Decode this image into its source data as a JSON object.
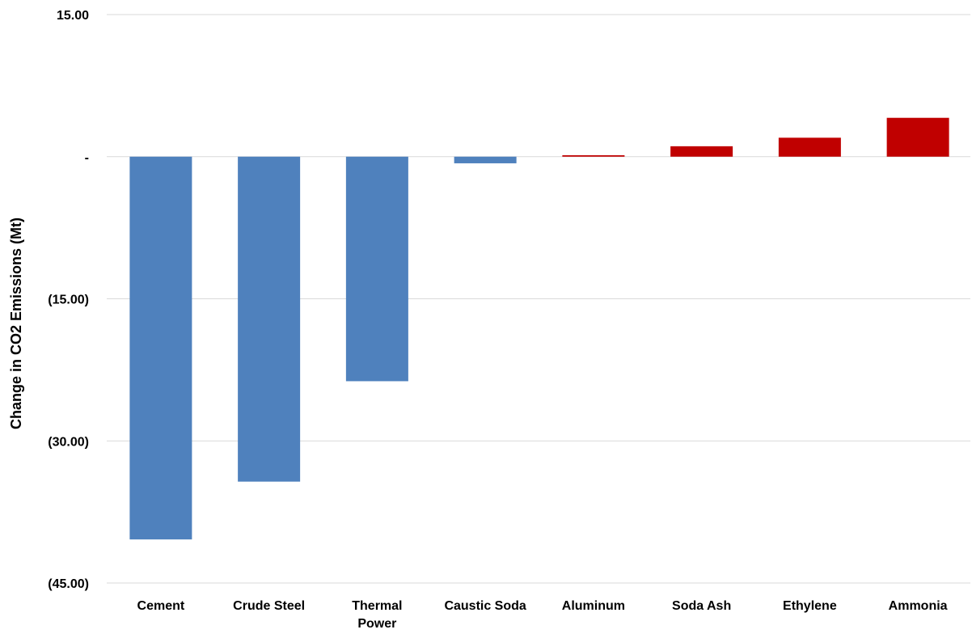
{
  "chart_data": {
    "type": "bar",
    "title": "",
    "xlabel": "",
    "ylabel": "Change in CO2 Emissions (Mt)",
    "ylim": [
      -45,
      15
    ],
    "yticks": [
      15,
      0,
      -15,
      -30,
      -45
    ],
    "ytick_labels": [
      "15.00",
      "-",
      "(15.00)",
      "(30.00)",
      "(45.00)"
    ],
    "grid": true,
    "legend": "none",
    "categories": [
      [
        "Cement"
      ],
      [
        "Crude Steel"
      ],
      [
        "Thermal",
        "Power"
      ],
      [
        "Caustic Soda"
      ],
      [
        "Aluminum"
      ],
      [
        "Soda Ash"
      ],
      [
        "Ethylene"
      ],
      [
        "Ammonia"
      ]
    ],
    "values": [
      -40.4,
      -34.3,
      -23.7,
      -0.7,
      0.15,
      1.1,
      2.0,
      4.1
    ],
    "colors": {
      "negative": "#4F81BD",
      "positive": "#C00000",
      "gridline": "#D9D9D9"
    }
  }
}
